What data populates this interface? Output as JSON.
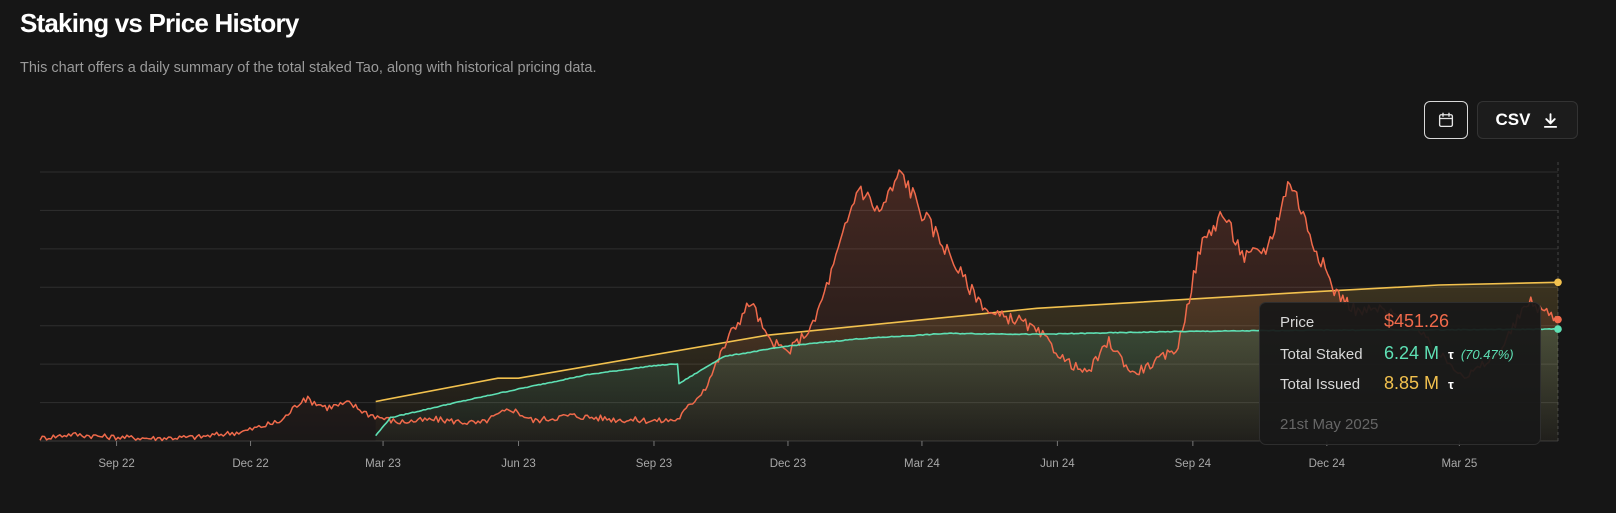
{
  "header": {
    "title": "Staking vs Price History",
    "subtitle": "This chart offers a daily summary of the total staked Tao, along with historical pricing data."
  },
  "toolbar": {
    "calendar_icon": "calendar-icon",
    "csv_label": "CSV",
    "download_icon": "download-icon"
  },
  "tooltip": {
    "price_label": "Price",
    "price_value": "$451.26",
    "staked_label": "Total Staked",
    "staked_value": "6.24 M",
    "staked_unit": "τ",
    "staked_pct": "(70.47%)",
    "issued_label": "Total Issued",
    "issued_value": "8.85 M",
    "issued_unit": "τ",
    "date": "21st May 2025"
  },
  "colors": {
    "background": "#161616",
    "price": "#f06a4b",
    "staked": "#5ee0b4",
    "issued": "#f2c14e",
    "grid": "#2f2f2f"
  },
  "chart_data": {
    "type": "line",
    "title": "Staking vs Price History",
    "x_range": [
      "2022-07-25",
      "2025-05-21"
    ],
    "x_ticks": [
      {
        "date": "2022-09-15",
        "label": "Sep 22"
      },
      {
        "date": "2022-12-15",
        "label": "Dec 22"
      },
      {
        "date": "2023-03-15",
        "label": "Mar 23"
      },
      {
        "date": "2023-06-15",
        "label": "Jun 23"
      },
      {
        "date": "2023-09-15",
        "label": "Sep 23"
      },
      {
        "date": "2023-12-15",
        "label": "Dec 23"
      },
      {
        "date": "2024-03-15",
        "label": "Mar 24"
      },
      {
        "date": "2024-06-15",
        "label": "Jun 24"
      },
      {
        "date": "2024-09-15",
        "label": "Sep 24"
      },
      {
        "date": "2024-12-15",
        "label": "Dec 24"
      },
      {
        "date": "2025-03-15",
        "label": "Mar 25"
      }
    ],
    "grid": true,
    "y_gridlines": 8,
    "series": [
      {
        "name": "Price",
        "y_axis": "price",
        "ylim": [
          0,
          1000
        ],
        "points": [
          [
            "2022-07-25",
            10
          ],
          [
            "2022-08-15",
            25
          ],
          [
            "2022-09-10",
            15
          ],
          [
            "2022-10-10",
            10
          ],
          [
            "2022-11-10",
            15
          ],
          [
            "2022-12-10",
            35
          ],
          [
            "2023-01-05",
            75
          ],
          [
            "2023-01-20",
            160
          ],
          [
            "2023-02-05",
            125
          ],
          [
            "2023-02-20",
            140
          ],
          [
            "2023-03-05",
            100
          ],
          [
            "2023-03-25",
            70
          ],
          [
            "2023-04-20",
            80
          ],
          [
            "2023-05-20",
            65
          ],
          [
            "2023-06-10",
            120
          ],
          [
            "2023-06-25",
            75
          ],
          [
            "2023-07-20",
            95
          ],
          [
            "2023-08-20",
            80
          ],
          [
            "2023-09-20",
            75
          ],
          [
            "2023-10-01",
            80
          ],
          [
            "2023-10-20",
            200
          ],
          [
            "2023-11-05",
            390
          ],
          [
            "2023-11-20",
            520
          ],
          [
            "2023-12-01",
            380
          ],
          [
            "2023-12-15",
            330
          ],
          [
            "2024-01-01",
            430
          ],
          [
            "2024-01-15",
            650
          ],
          [
            "2024-02-01",
            950
          ],
          [
            "2024-02-15",
            850
          ],
          [
            "2024-03-01",
            1000
          ],
          [
            "2024-03-15",
            850
          ],
          [
            "2024-04-01",
            710
          ],
          [
            "2024-04-15",
            580
          ],
          [
            "2024-05-01",
            470
          ],
          [
            "2024-05-20",
            450
          ],
          [
            "2024-06-05",
            390
          ],
          [
            "2024-06-20",
            300
          ],
          [
            "2024-07-05",
            250
          ],
          [
            "2024-07-20",
            370
          ],
          [
            "2024-08-05",
            250
          ],
          [
            "2024-08-20",
            290
          ],
          [
            "2024-09-05",
            350
          ],
          [
            "2024-09-20",
            720
          ],
          [
            "2024-10-05",
            850
          ],
          [
            "2024-10-20",
            680
          ],
          [
            "2024-11-05",
            720
          ],
          [
            "2024-11-20",
            975
          ],
          [
            "2024-12-05",
            750
          ],
          [
            "2024-12-20",
            560
          ],
          [
            "2025-01-05",
            480
          ],
          [
            "2025-01-20",
            490
          ],
          [
            "2025-02-10",
            440
          ],
          [
            "2025-03-01",
            320
          ],
          [
            "2025-03-20",
            240
          ],
          [
            "2025-04-10",
            320
          ],
          [
            "2025-05-01",
            520
          ],
          [
            "2025-05-21",
            451.26
          ]
        ]
      },
      {
        "name": "Total Staked",
        "y_axis": "tao",
        "ylim": [
          0,
          15
        ],
        "points": [
          [
            "2023-03-10",
            0.3
          ],
          [
            "2023-03-20",
            1.3
          ],
          [
            "2023-05-01",
            2.1
          ],
          [
            "2023-06-15",
            2.9
          ],
          [
            "2023-08-01",
            3.7
          ],
          [
            "2023-09-15",
            4.2
          ],
          [
            "2023-10-01",
            4.3
          ],
          [
            "2023-10-02",
            3.2
          ],
          [
            "2023-11-01",
            4.7
          ],
          [
            "2023-12-15",
            5.3
          ],
          [
            "2024-02-01",
            5.7
          ],
          [
            "2024-04-01",
            6.0
          ],
          [
            "2024-06-01",
            5.95
          ],
          [
            "2024-09-01",
            6.1
          ],
          [
            "2024-12-01",
            6.18
          ],
          [
            "2025-03-01",
            6.2
          ],
          [
            "2025-05-21",
            6.24
          ]
        ]
      },
      {
        "name": "Total Issued",
        "y_axis": "tao",
        "ylim": [
          0,
          15
        ],
        "points": [
          [
            "2023-03-10",
            2.2
          ],
          [
            "2023-06-01",
            3.5
          ],
          [
            "2023-06-15",
            3.5
          ],
          [
            "2023-12-01",
            5.9
          ],
          [
            "2024-06-01",
            7.4
          ],
          [
            "2024-12-01",
            8.3
          ],
          [
            "2025-03-01",
            8.7
          ],
          [
            "2025-05-21",
            8.85
          ]
        ]
      }
    ]
  }
}
